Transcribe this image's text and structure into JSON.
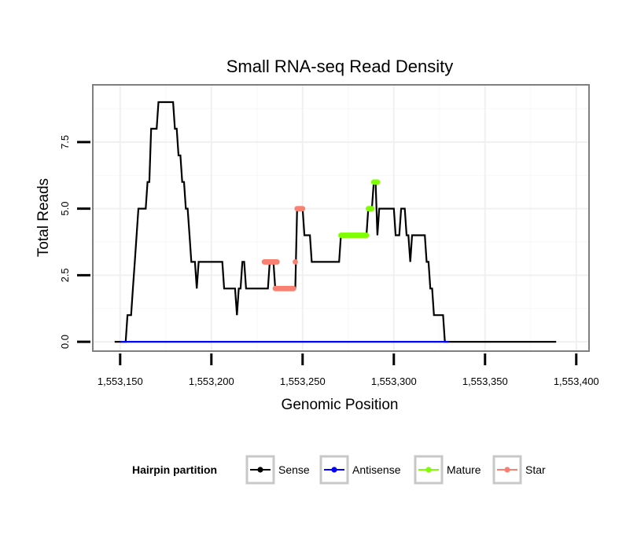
{
  "chart_data": {
    "type": "line",
    "title": "Small RNA-seq Read Density",
    "xlabel": "Genomic Position",
    "ylabel": "Total Reads",
    "xlim": [
      1553135,
      1553407
    ],
    "ylim": [
      -0.35,
      9.65
    ],
    "x_ticks": [
      1553150,
      1553200,
      1553250,
      1553300,
      1553350,
      1553400
    ],
    "x_tick_labels": [
      "1,553,150",
      "1,553,200",
      "1,553,250",
      "1,553,300",
      "1,553,350",
      "1,553,400"
    ],
    "y_ticks": [
      0,
      2.5,
      5,
      7.5
    ],
    "y_tick_labels": [
      "0.0",
      "2.5",
      "5.0",
      "7.5"
    ],
    "grid": true,
    "legend": {
      "title": "Hairpin partition",
      "position": "bottom",
      "entries": [
        "Sense",
        "Antisense",
        "Mature",
        "Star"
      ]
    },
    "colors": {
      "Sense": "#000000",
      "Antisense": "#0000ff",
      "Mature": "#7fff00",
      "Star": "#fa8072"
    },
    "series": [
      {
        "name": "Sense",
        "points": [
          [
            1553147,
            0
          ],
          [
            1553153,
            0
          ],
          [
            1553154,
            1
          ],
          [
            1553156,
            1
          ],
          [
            1553157,
            2
          ],
          [
            1553158,
            3
          ],
          [
            1553159,
            4
          ],
          [
            1553160,
            5
          ],
          [
            1553164,
            5
          ],
          [
            1553165,
            6
          ],
          [
            1553166,
            6
          ],
          [
            1553167,
            8
          ],
          [
            1553170,
            8
          ],
          [
            1553171,
            9
          ],
          [
            1553179,
            9
          ],
          [
            1553180,
            8
          ],
          [
            1553181,
            8
          ],
          [
            1553182,
            7
          ],
          [
            1553183,
            7
          ],
          [
            1553184,
            6
          ],
          [
            1553185,
            6
          ],
          [
            1553186,
            5
          ],
          [
            1553187,
            5
          ],
          [
            1553188,
            4
          ],
          [
            1553189,
            3
          ],
          [
            1553191,
            3
          ],
          [
            1553192,
            2
          ],
          [
            1553193,
            3
          ],
          [
            1553206,
            3
          ],
          [
            1553207,
            2
          ],
          [
            1553213,
            2
          ],
          [
            1553214,
            1
          ],
          [
            1553215,
            2
          ],
          [
            1553216,
            2
          ],
          [
            1553217,
            3
          ],
          [
            1553218,
            3
          ],
          [
            1553219,
            2
          ],
          [
            1553231,
            2
          ],
          [
            1553232,
            3
          ],
          [
            1553233,
            3
          ],
          [
            1553234,
            3
          ],
          [
            1553235,
            2
          ],
          [
            1553244,
            2
          ],
          [
            1553245,
            2
          ],
          [
            1553246,
            2
          ],
          [
            1553247,
            5
          ],
          [
            1553250,
            5
          ],
          [
            1553251,
            4
          ],
          [
            1553254,
            4
          ],
          [
            1553255,
            3
          ],
          [
            1553270,
            3
          ],
          [
            1553271,
            4
          ],
          [
            1553285,
            4
          ],
          [
            1553286,
            5
          ],
          [
            1553288,
            5
          ],
          [
            1553289,
            6
          ],
          [
            1553290,
            6
          ],
          [
            1553291,
            4
          ],
          [
            1553292,
            5
          ],
          [
            1553300,
            5
          ],
          [
            1553301,
            4
          ],
          [
            1553303,
            4
          ],
          [
            1553304,
            5
          ],
          [
            1553306,
            5
          ],
          [
            1553307,
            4
          ],
          [
            1553308,
            4
          ],
          [
            1553309,
            3
          ],
          [
            1553310,
            4
          ],
          [
            1553317,
            4
          ],
          [
            1553318,
            3
          ],
          [
            1553319,
            3
          ],
          [
            1553320,
            2
          ],
          [
            1553321,
            2
          ],
          [
            1553322,
            1
          ],
          [
            1553327,
            1
          ],
          [
            1553328,
            0
          ],
          [
            1553389,
            0
          ]
        ]
      },
      {
        "name": "Antisense",
        "points": [
          [
            1553150,
            0
          ],
          [
            1553330,
            0
          ]
        ]
      },
      {
        "name": "Mature",
        "segments": [
          {
            "x": [
              1553271,
              1553285
            ],
            "y": 4
          },
          {
            "x": [
              1553286,
              1553288
            ],
            "y": 5
          },
          {
            "x": [
              1553289,
              1553291
            ],
            "y": 6
          }
        ]
      },
      {
        "name": "Star",
        "segments": [
          {
            "x": [
              1553229,
              1553236
            ],
            "y": 3
          },
          {
            "x": [
              1553235,
              1553245
            ],
            "y": 2
          },
          {
            "x": [
              1553246,
              1553246
            ],
            "y": 3
          },
          {
            "x": [
              1553247,
              1553250
            ],
            "y": 5
          }
        ]
      }
    ]
  }
}
